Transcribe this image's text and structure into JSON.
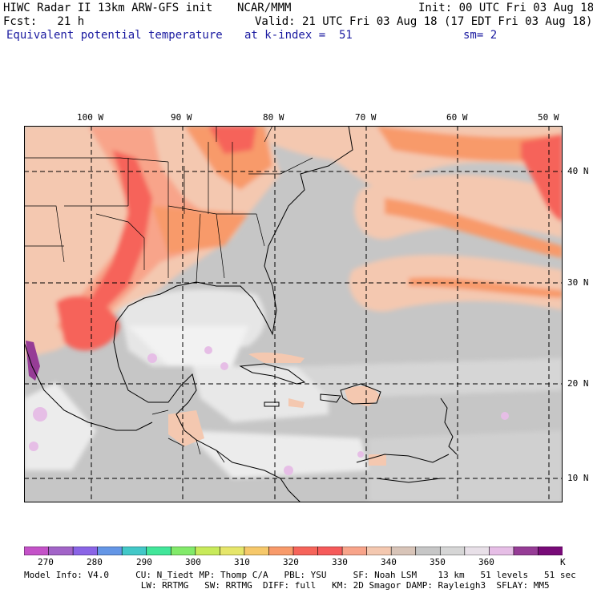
{
  "header": {
    "line1_left": "HIWC Radar II 13km ARW-GFS init",
    "line1_center": "NCAR/MMM",
    "line1_right": "Init: 00 UTC Fri 03 Aug 18",
    "line2_left": "Fcst:   21 h",
    "line2_right": "Valid: 21 UTC Fri 03 Aug 18 (17 EDT Fri 03 Aug 18)",
    "line3_left": "Equivalent potential temperature",
    "line3_center": "at k-index =  51",
    "line3_right": "sm= 2"
  },
  "map": {
    "lon_labels": [
      "100 W",
      "90 W",
      "80 W",
      "70 W",
      "60 W",
      "50 W"
    ],
    "lat_labels": [
      "40 N",
      "30 N",
      "20 N",
      "10 N"
    ]
  },
  "colorbar": {
    "tick_labels": [
      "270",
      "280",
      "290",
      "300",
      "310",
      "320",
      "330",
      "340",
      "350",
      "360",
      "K"
    ],
    "colors": [
      "#c452c8",
      "#a264c8",
      "#8a64e6",
      "#6496e6",
      "#42c8c8",
      "#42e69a",
      "#82ea6a",
      "#c8ea5a",
      "#e6e66a",
      "#f6c86a",
      "#f89a6a",
      "#f6645a",
      "#f65a5a",
      "#f8a48a",
      "#f4c8b0",
      "#d8c4b8",
      "#c6c6c6",
      "#d6d6d6",
      "#e8e0e8",
      "#e6bee6",
      "#963c96",
      "#780a78"
    ]
  },
  "footer": {
    "line1": "Model Info: V4.0     CU: N_Tiedt MP: Thomp C/A   PBL: YSU     SF: Noah LSM    13 km   51 levels   51 sec",
    "line2": "                      LW: RRTMG   SW: RRTMG  DIFF: full   KM: 2D Smagor DAMP: Rayleigh3  SFLAY: MM5"
  }
}
